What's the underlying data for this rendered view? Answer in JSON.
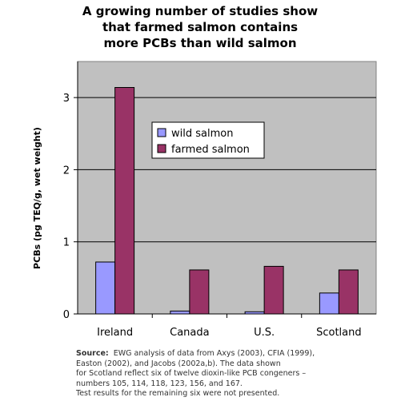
{
  "chart_data": {
    "type": "bar",
    "title": "A growing number of studies show\nthat farmed salmon contains\nmore PCBs than wild salmon",
    "ylabel": "PCBs (pg TEQ/g, wet weight)",
    "xlabel": "",
    "categories": [
      "Ireland",
      "Canada",
      "U.S.",
      "Scotland"
    ],
    "series": [
      {
        "name": "wild salmon",
        "values": [
          0.72,
          0.04,
          0.03,
          0.29
        ],
        "color": "#9999ff"
      },
      {
        "name": "farmed salmon",
        "values": [
          3.14,
          0.61,
          0.66,
          0.61
        ],
        "color": "#993366"
      }
    ],
    "ylim": [
      0,
      3.5
    ],
    "yticks": [
      0,
      1,
      2,
      3
    ],
    "grid": true,
    "legend_position": "center",
    "plot_background": "#c0c0c0"
  },
  "source": {
    "label": "Source:",
    "lines": [
      "EWG analysis of data from Axys (2003), CFIA (1999),",
      "Easton (2002), and Jacobs (2002a,b).  The data shown",
      "for Scotland reflect six of twelve dioxin-like PCB congeners –",
      "numbers 105, 114, 118, 123, 156, and 167.",
      "Test results for the remaining six were not presented."
    ]
  }
}
